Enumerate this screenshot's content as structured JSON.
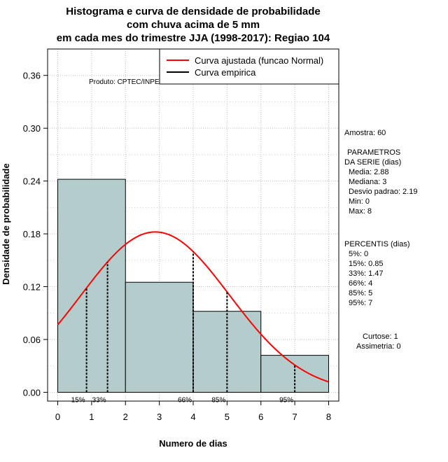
{
  "chart_data": {
    "type": "bar",
    "title_lines": [
      "Histograma e curva de densidade de probabilidade",
      "com chuva acima de 5 mm",
      "em cada mes do trimestre JJA (1998-2017): Regiao 104"
    ],
    "xlabel": "Numero de dias",
    "ylabel": "Densidade de probabilidade",
    "xlim": [
      -0.3,
      8.3
    ],
    "ylim": [
      -0.01,
      0.39
    ],
    "x_ticks": [
      0,
      1,
      2,
      3,
      4,
      5,
      6,
      7,
      8
    ],
    "y_ticks": [
      0.0,
      0.06,
      0.12,
      0.18,
      0.24,
      0.3,
      0.36
    ],
    "y_tick_labels": [
      "0.00",
      "0.06",
      "0.12",
      "0.18",
      "0.24",
      "0.30",
      "0.36"
    ],
    "x_tick_labels": [
      "0",
      "1",
      "2",
      "3",
      "4",
      "5",
      "6",
      "7",
      "8"
    ],
    "histogram": {
      "bin_edges": [
        0,
        2,
        4,
        6,
        8
      ],
      "densities": [
        0.242,
        0.125,
        0.092,
        0.042
      ],
      "fill_color": "#b5cccc"
    },
    "normal_curve": {
      "label": "Curva ajustada (funcao Normal)",
      "color": "#ff0000",
      "mean": 2.88,
      "sd": 2.19,
      "x_range": [
        0,
        8
      ]
    },
    "empirical_curve": {
      "label": "Curva empirica",
      "color": "#000000"
    },
    "percentile_lines": [
      {
        "x": 0.85,
        "label": "15%"
      },
      {
        "x": 1.47,
        "label": "33%"
      },
      {
        "x": 4,
        "label": "66%"
      },
      {
        "x": 5,
        "label": "85%"
      },
      {
        "x": 7,
        "label": "95%"
      }
    ],
    "product_label": "Produto: CPTEC/INPE",
    "legend_position": "top-right",
    "grid": true
  },
  "side_panel": {
    "sample": "Amostra: 60",
    "params_title_1": "PARAMETROS",
    "params_title_2": "DA SERIE (dias)",
    "params": [
      "Media: 2.88",
      "Mediana: 3",
      "Desvio padrao: 2.19",
      "Min: 0",
      "Max: 8"
    ],
    "percentis_title": "PERCENTIS (dias)",
    "percentis": [
      "5%: 0",
      "15%: 0.85",
      "33%: 1.47",
      "66%: 4",
      "85%: 5",
      "95%: 7"
    ],
    "curtose": "Curtose: 1",
    "assimetria": "Assimetria: 0"
  }
}
